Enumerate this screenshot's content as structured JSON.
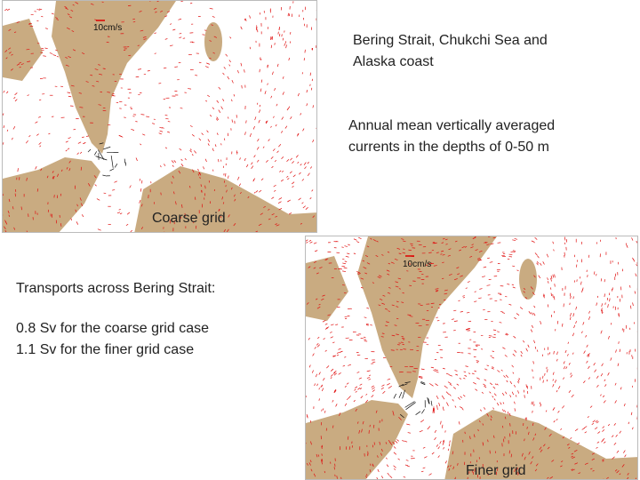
{
  "slide": {
    "title_lines": [
      "Bering Strait,  Chukchi Sea and",
      "Alaska coast"
    ],
    "description_lines": [
      "Annual mean vertically averaged",
      "currents in the depths of 0-50 m"
    ],
    "transport": {
      "heading": "Transports across Bering Strait:",
      "lines": [
        "0.8 Sv for the coarse grid case",
        "1.1 Sv for the finer grid case"
      ]
    }
  },
  "maps": [
    {
      "label": "Coarse grid",
      "scale": "10cm/s"
    },
    {
      "label": "Finer grid",
      "scale": "10cm/s"
    }
  ]
}
